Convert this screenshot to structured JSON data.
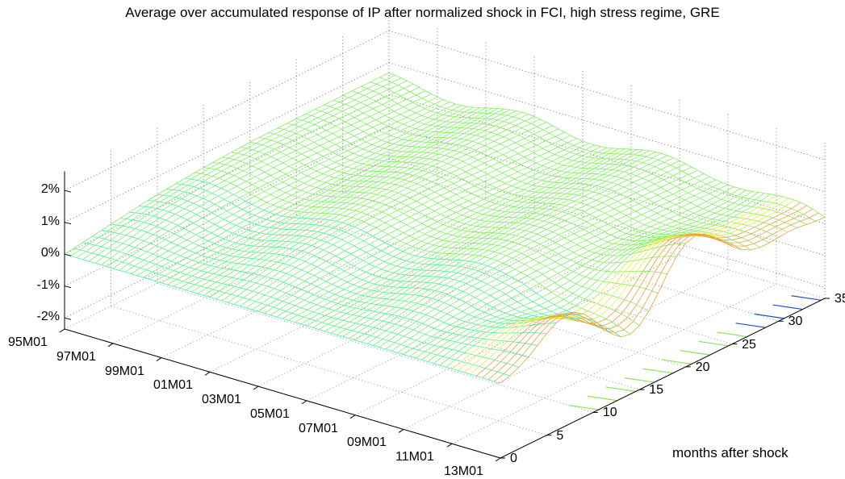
{
  "chart_data": {
    "type": "surface",
    "title": "Average over accumulated response of IP after normalized shock in FCI, high stress regime, GRE",
    "xlabel": "",
    "ylabel": "months after shock",
    "zlabel": "",
    "x_ticks": [
      "95M01",
      "97M01",
      "99M01",
      "01M01",
      "03M01",
      "05M01",
      "07M01",
      "09M01",
      "11M01",
      "13M01"
    ],
    "y_ticks": [
      "0",
      "5",
      "10",
      "15",
      "20",
      "25",
      "30",
      "35"
    ],
    "z_ticks": [
      "-2%",
      "-1%",
      "0%",
      "1%",
      "2%"
    ],
    "xlim": [
      "95M01",
      "13M01"
    ],
    "ylim": [
      0,
      35
    ],
    "zlim": [
      -2.5,
      2.5
    ],
    "grid": true,
    "surface_profile_months_after_shock": [
      0,
      5,
      10,
      15,
      20,
      25,
      30,
      35
    ],
    "surface_approx_value_pct": [
      0.0,
      0.2,
      0.35,
      0.45,
      0.5,
      0.5,
      0.5,
      0.5
    ],
    "colormap": "jet"
  }
}
